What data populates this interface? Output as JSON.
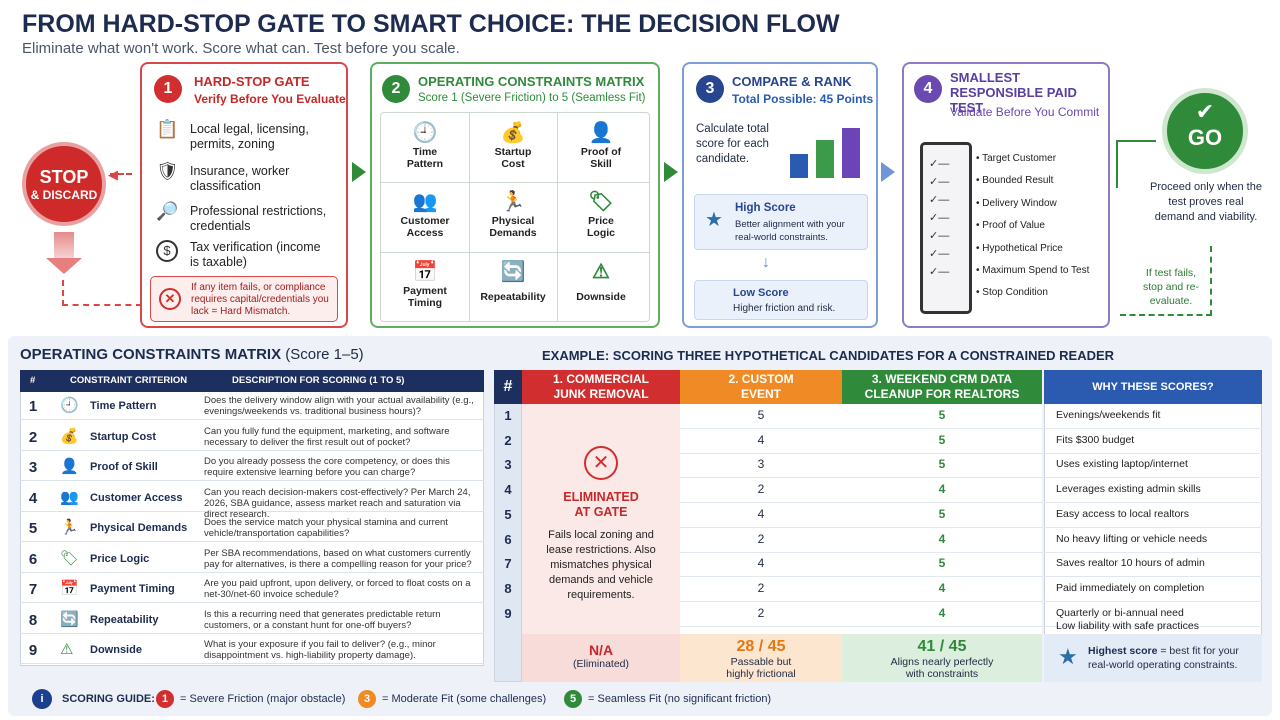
{
  "title": "FROM HARD-STOP GATE TO SMART CHOICE: THE DECISION FLOW",
  "subtitle": "Eliminate what won't work. Score what can. Test before you scale.",
  "stop": {
    "line1": "STOP",
    "line2": "& DISCARD"
  },
  "gate": {
    "num": "1",
    "title": "HARD-STOP GATE",
    "sub": "Verify Before You Evaluate",
    "items": [
      {
        "icon": "clipboard-icon",
        "g": "📋",
        "text": "Local legal, licensing, permits, zoning"
      },
      {
        "icon": "shield-icon",
        "g": "🛡",
        "text": "Insurance, worker classification"
      },
      {
        "icon": "document-search-icon",
        "g": "🔎",
        "text": "Professional restrictions, credentials"
      },
      {
        "icon": "dollar-icon",
        "g": "$",
        "text": "Tax verification (income is taxable)"
      }
    ],
    "mismatch": "If any item fails, or compliance requires capital/credentials you lack = Hard Mismatch."
  },
  "matrix": {
    "num": "2",
    "title": "OPERATING CONSTRAINTS MATRIX",
    "sub": "Score 1 (Severe Friction) to 5 (Seamless Fit)",
    "cells": [
      {
        "icon": "clock-icon",
        "g": "🕘",
        "label": "Time Pattern"
      },
      {
        "icon": "moneybag-icon",
        "g": "💰",
        "label": "Startup Cost"
      },
      {
        "icon": "skill-icon",
        "g": "👤",
        "label": "Proof of Skill"
      },
      {
        "icon": "people-icon",
        "g": "👥",
        "label": "Customer Access"
      },
      {
        "icon": "runner-icon",
        "g": "🏃",
        "label": "Physical Demands"
      },
      {
        "icon": "price-tag-icon",
        "g": "🏷",
        "label": "Price Logic"
      },
      {
        "icon": "calendar-icon",
        "g": "📅",
        "label": "Payment Timing"
      },
      {
        "icon": "repeat-icon",
        "g": "🔄",
        "label": "Repeatability"
      },
      {
        "icon": "warning-icon",
        "g": "⚠",
        "label": "Downside"
      }
    ]
  },
  "rank": {
    "num": "3",
    "title": "COMPARE & RANK",
    "sub": "Total Possible: 45 Points",
    "text": "Calculate total score for each candidate.",
    "high_title": "High Score",
    "high_text": "Better alignment with your real-world constraints.",
    "low_title": "Low Score",
    "low_text": "Higher friction and risk."
  },
  "test": {
    "num": "4",
    "title": "SMALLEST RESPONSIBLE PAID TEST",
    "sub": "Validate Before You Commit",
    "items": [
      "Target Customer",
      "Bounded Result",
      "Delivery Window",
      "Proof of Value",
      "Hypothetical Price",
      "Maximum Spend to Test",
      "Stop Condition"
    ]
  },
  "go": {
    "label": "GO",
    "text": "Proceed only when the test proves real demand and viability.",
    "fail": "If test fails, stop and re-evaluate."
  },
  "left_table": {
    "title": "OPERATING CONSTRAINTS MATRIX",
    "title_suffix": "(Score 1–5)",
    "headers": [
      "#",
      "CONSTRAINT CRITERION",
      "DESCRIPTION FOR SCORING (1 TO 5)"
    ],
    "rows": [
      {
        "n": "1",
        "icon": "clock-icon",
        "g": "🕘",
        "c": "Time Pattern",
        "d": "Does the delivery window align with your actual availability (e.g., evenings/weekends vs. traditional business hours)?"
      },
      {
        "n": "2",
        "icon": "moneybag-icon",
        "g": "💰",
        "c": "Startup Cost",
        "d": "Can you fully fund the equipment, marketing, and software necessary to deliver the first result out of pocket?"
      },
      {
        "n": "3",
        "icon": "skill-icon",
        "g": "👤",
        "c": "Proof of Skill",
        "d": "Do you already possess the core competency, or does this require extensive learning before you can charge?"
      },
      {
        "n": "4",
        "icon": "people-icon",
        "g": "👥",
        "c": "Customer Access",
        "d": "Can you reach decision-makers cost-effectively? Per March 24, 2026, SBA guidance, assess market reach and saturation via direct research."
      },
      {
        "n": "5",
        "icon": "runner-icon",
        "g": "🏃",
        "c": "Physical Demands",
        "d": "Does the service match your physical stamina and current vehicle/transportation capabilities?"
      },
      {
        "n": "6",
        "icon": "price-tag-icon",
        "g": "🏷",
        "c": "Price Logic",
        "d": "Per SBA recommendations, based on what customers currently pay for alternatives, is there a compelling reason for your price?"
      },
      {
        "n": "7",
        "icon": "calendar-icon",
        "g": "📅",
        "c": "Payment Timing",
        "d": "Are you paid upfront, upon delivery, or forced to float costs on a net-30/net-60 invoice schedule?"
      },
      {
        "n": "8",
        "icon": "repeat-icon",
        "g": "🔄",
        "c": "Repeatability",
        "d": "Is this a recurring need that generates predictable return customers, or a constant hunt for one-off buyers?"
      },
      {
        "n": "9",
        "icon": "warning-icon",
        "g": "⚠",
        "c": "Downside",
        "d": "What is your exposure if you fail to deliver? (e.g., minor disappointment vs. high-liability property damage)."
      }
    ]
  },
  "example": {
    "title": "EXAMPLE: SCORING THREE HYPOTHETICAL CANDIDATES FOR A CONSTRAINED READER",
    "col_hash": "#",
    "c1": "1. COMMERCIAL JUNK REMOVAL",
    "c2": "2. CUSTOM EVENT BAKING",
    "c3": "3. WEEKEND CRM DATA CLEANUP FOR REALTORS",
    "c4": "WHY THESE SCORES?",
    "elim_title": "ELIMINATED AT GATE",
    "elim_text": "Fails local zoning and lease restrictions. Also mismatches physical demands and vehicle requirements.",
    "rows": [
      {
        "n": "1",
        "b": "5",
        "c": "5",
        "w": "Evenings/weekends fit"
      },
      {
        "n": "2",
        "b": "4",
        "c": "5",
        "w": "Fits $300 budget"
      },
      {
        "n": "3",
        "b": "3",
        "c": "5",
        "w": "Uses existing laptop/internet"
      },
      {
        "n": "4",
        "b": "2",
        "c": "4",
        "w": "Leverages existing admin skills"
      },
      {
        "n": "5",
        "b": "4",
        "c": "5",
        "w": "Easy access to local realtors"
      },
      {
        "n": "6",
        "b": "2",
        "c": "4",
        "w": "No heavy lifting or vehicle needs"
      },
      {
        "n": "7",
        "b": "4",
        "c": "5",
        "w": "Saves realtor 10 hours of admin"
      },
      {
        "n": "8",
        "b": "2",
        "c": "4",
        "w": "Paid immediately on completion"
      },
      {
        "n": "9",
        "b": "2",
        "c": "4",
        "w": "Quarterly or bi-annual need"
      }
    ],
    "extra_why": "Low liability with safe practices",
    "t1": "N/A",
    "t1s": "(Eliminated)",
    "t2": "28 / 45",
    "t2s": "Passable but highly frictional",
    "t3": "41 / 45",
    "t3s": "Aligns nearly perfectly with constraints",
    "t4a": "Highest score",
    "t4b": "= best fit for your real-world operating constraints."
  },
  "guide": {
    "label": "SCORING GUIDE:",
    "g1n": "1",
    "g1": "= Severe Friction (major obstacle)",
    "g3n": "3",
    "g3": "= Moderate Fit (some challenges)",
    "g5n": "5",
    "g5": "= Seamless Fit (no significant friction)"
  }
}
